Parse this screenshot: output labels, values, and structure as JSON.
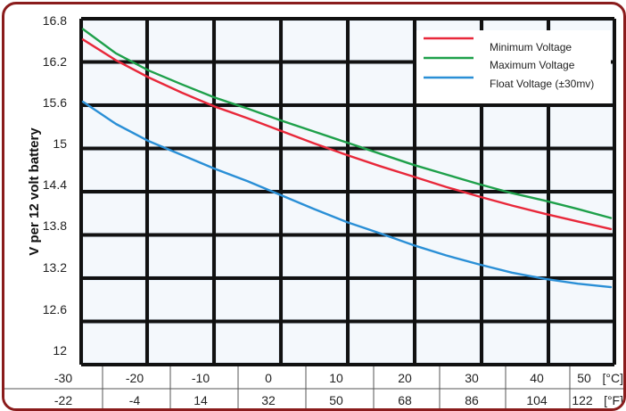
{
  "chart_data": {
    "type": "line",
    "title": "",
    "ylabel": "V per 12 volt battery",
    "xlabel": "",
    "ylim": [
      11.8,
      16.8
    ],
    "xlim": [
      -30,
      50
    ],
    "y_ticks": [
      "16.8",
      "16.2",
      "15.6",
      "15",
      "14.4",
      "13.8",
      "13.2",
      "12.6",
      "12"
    ],
    "x_ticks_c": [
      "-30",
      "-20",
      "-10",
      "0",
      "10",
      "20",
      "30",
      "40",
      "50"
    ],
    "x_ticks_f": [
      "-22",
      "-4",
      "14",
      "32",
      "50",
      "68",
      "86",
      "104",
      "122"
    ],
    "x_unit_c": "[°C]",
    "x_unit_f": "[°F]",
    "grid": true,
    "legend_position": "top-right",
    "series": [
      {
        "name": "Minimum Voltage",
        "color": "#e8283a",
        "x": [
          -30,
          -25,
          -20,
          -15,
          -10,
          -5,
          0,
          5,
          10,
          15,
          20,
          25,
          30,
          35,
          40,
          45,
          50
        ],
        "y": [
          16.5,
          16.2,
          15.95,
          15.73,
          15.53,
          15.36,
          15.18,
          15.0,
          14.83,
          14.67,
          14.52,
          14.37,
          14.23,
          14.1,
          13.98,
          13.87,
          13.76
        ]
      },
      {
        "name": "Maximum Voltage",
        "color": "#1ea04a",
        "x": [
          -30,
          -25,
          -20,
          -15,
          -10,
          -5,
          0,
          5,
          10,
          15,
          20,
          25,
          30,
          35,
          40,
          45,
          50
        ],
        "y": [
          16.65,
          16.3,
          16.05,
          15.85,
          15.66,
          15.5,
          15.33,
          15.17,
          15.01,
          14.85,
          14.69,
          14.55,
          14.41,
          14.28,
          14.17,
          14.05,
          13.92
        ]
      },
      {
        "name": "Float Voltage (±30mv)",
        "color": "#2a8fd6",
        "x": [
          -30,
          -25,
          -20,
          -15,
          -10,
          -5,
          0,
          5,
          10,
          15,
          20,
          25,
          30,
          35,
          40,
          45,
          50
        ],
        "y": [
          15.6,
          15.28,
          15.03,
          14.83,
          14.63,
          14.45,
          14.25,
          14.05,
          13.86,
          13.7,
          13.53,
          13.38,
          13.25,
          13.13,
          13.04,
          12.97,
          12.92
        ]
      }
    ]
  }
}
